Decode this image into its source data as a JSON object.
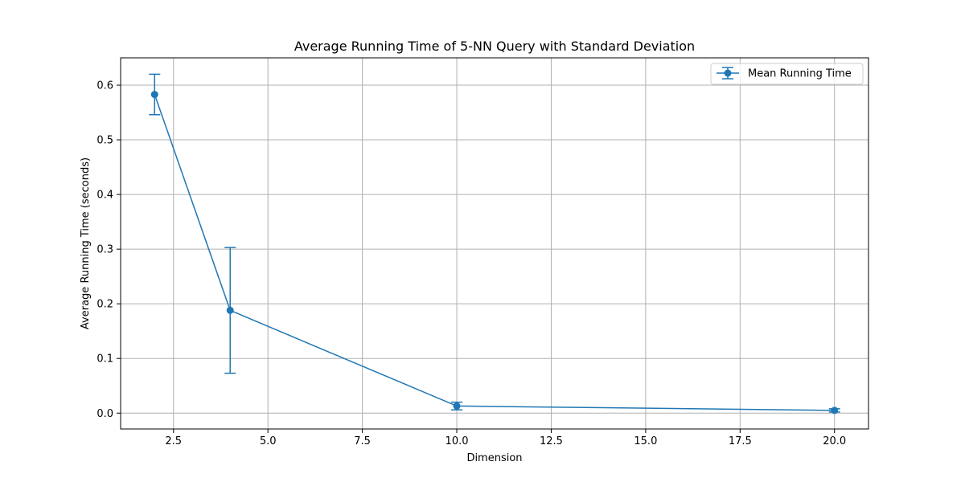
{
  "chart_data": {
    "type": "line",
    "title": "Average Running Time of 5-NN Query with Standard Deviation",
    "xlabel": "Dimension",
    "ylabel": "Average Running Time (seconds)",
    "xlim": [
      1.1,
      20.9
    ],
    "ylim": [
      -0.029,
      0.65
    ],
    "grid": true,
    "legend_position": "top-right",
    "x_ticks": [
      2.5,
      5.0,
      7.5,
      10.0,
      12.5,
      15.0,
      17.5,
      20.0
    ],
    "x_tick_labels": [
      "2.5",
      "5.0",
      "7.5",
      "10.0",
      "12.5",
      "15.0",
      "17.5",
      "20.0"
    ],
    "y_ticks": [
      0.0,
      0.1,
      0.2,
      0.3,
      0.4,
      0.5,
      0.6
    ],
    "y_tick_labels": [
      "0.0",
      "0.1",
      "0.2",
      "0.3",
      "0.4",
      "0.5",
      "0.6"
    ],
    "series": [
      {
        "name": "Mean Running Time",
        "color": "#1f77b4",
        "x": [
          2,
          4,
          10,
          20
        ],
        "y": [
          0.583,
          0.188,
          0.013,
          0.005
        ],
        "yerr": [
          0.037,
          0.115,
          0.007,
          0.003
        ]
      }
    ]
  }
}
